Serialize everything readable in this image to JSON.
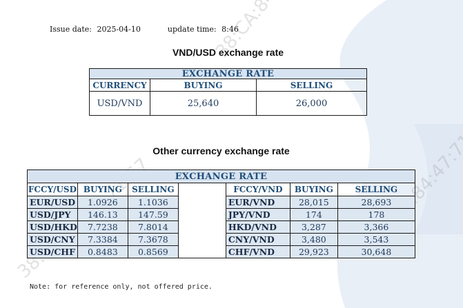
{
  "meta": {
    "issue_label": "Issue date:",
    "issue_date": "2025-04-10",
    "update_label": "update time:",
    "update_time": "8:46"
  },
  "vnd_usd": {
    "title": "VND/USD exchange rate",
    "table_title": "EXCHANGE RATE",
    "headers": [
      "CURRENCY",
      "BUYING",
      "SELLING"
    ],
    "row": {
      "currency": "USD/VND",
      "buying": "25,640",
      "selling": "26,000"
    }
  },
  "other": {
    "title": "Other currency exchange rate",
    "table_title": "EXCHANGE  RATE",
    "left_headers": [
      "FCCY/USD",
      "BUYING",
      "SELLING"
    ],
    "right_headers": [
      "FCCY/VND",
      "BUYING",
      "SELLING"
    ],
    "rows": [
      {
        "l_pair": "EUR/USD",
        "l_buy": "1.0926",
        "l_sell": "1.1036",
        "r_pair": "EUR/VND",
        "r_buy": "28,015",
        "r_sell": "28,693"
      },
      {
        "l_pair": "USD/JPY",
        "l_buy": "146.13",
        "l_sell": "147.59",
        "r_pair": "JPY/VND",
        "r_buy": "174",
        "r_sell": "178"
      },
      {
        "l_pair": "USD/HKD",
        "l_buy": "7.7238",
        "l_sell": "7.8014",
        "r_pair": "HKD/VND",
        "r_buy": "3,287",
        "r_sell": "3,366"
      },
      {
        "l_pair": "USD/CNY",
        "l_buy": "7.3384",
        "l_sell": "7.3678",
        "r_pair": "CNY/VND",
        "r_buy": "3,480",
        "r_sell": "3,543"
      },
      {
        "l_pair": "USD/CHF",
        "l_buy": "0.8483",
        "l_sell": "0.8569",
        "r_pair": "CHF/VND",
        "r_buy": "29,923",
        "r_sell": "30,648"
      }
    ]
  },
  "note": "Note: for reference only, not offered price.",
  "watermark": "38:CA:84:47:71:57",
  "colors": {
    "header_bg": "#d8e3f1",
    "header_text": "#1f4e79",
    "alt_row": "#dde7f2",
    "bg_shape": "#e8eef6"
  }
}
